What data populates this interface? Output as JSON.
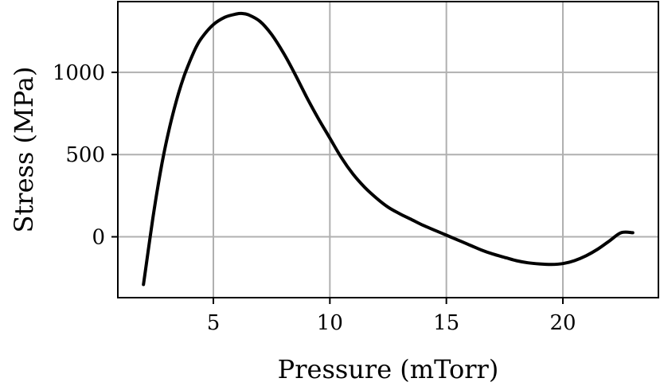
{
  "chart_data": {
    "type": "line",
    "title": "",
    "xlabel": "Pressure (mTorr)",
    "ylabel": "Stress (MPa)",
    "xlim": [
      0.9,
      24.1
    ],
    "ylim": [
      -370,
      1430
    ],
    "xticks": [
      5,
      10,
      15,
      20
    ],
    "yticks": [
      0,
      500,
      1000
    ],
    "xtick_labels": [
      "5",
      "10",
      "15",
      "20"
    ],
    "ytick_labels": [
      "0",
      "500",
      "1000"
    ],
    "grid": true,
    "legend": "none",
    "line_color": "#000000",
    "grid_color": "#b0b0b0",
    "series": [
      {
        "x": [
          2.0,
          2.2,
          2.4,
          2.6,
          2.8,
          3.0,
          3.25,
          3.5,
          3.75,
          4.0,
          4.25,
          4.5,
          5.0,
          5.5,
          6.0,
          6.2,
          6.5,
          7.0,
          7.5,
          8.0,
          8.5,
          9.0,
          9.5,
          10.0,
          10.5,
          11.0,
          11.5,
          12.0,
          12.5,
          13.0,
          13.5,
          14.0,
          14.5,
          15.0,
          15.5,
          16.0,
          16.5,
          17.0,
          17.5,
          18.0,
          18.5,
          19.0,
          19.5,
          20.0,
          20.5,
          21.0,
          21.5,
          22.0,
          22.5,
          23.0
        ],
        "y": [
          -290,
          -90,
          110,
          290,
          450,
          590,
          740,
          870,
          980,
          1070,
          1150,
          1210,
          1290,
          1335,
          1355,
          1358,
          1350,
          1310,
          1230,
          1120,
          990,
          850,
          720,
          600,
          480,
          380,
          300,
          235,
          180,
          140,
          105,
          70,
          40,
          10,
          -20,
          -50,
          -80,
          -105,
          -125,
          -145,
          -158,
          -165,
          -168,
          -163,
          -145,
          -115,
          -75,
          -25,
          25,
          25
        ]
      }
    ]
  }
}
